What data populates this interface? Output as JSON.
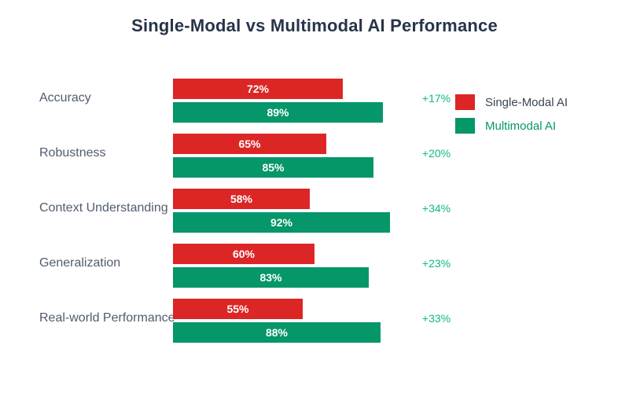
{
  "title": "Single-Modal vs Multimodal AI Performance",
  "colors": {
    "background": "#ffffff",
    "single_modal_bar": "#dc2626",
    "multimodal_bar": "#059669",
    "improvement_text": "#10b981",
    "title_text": "#283449",
    "category_text": "#515c6e",
    "legend_single_text": "#3a4554",
    "legend_multi_text": "#059669",
    "bar_value_text": "#ffffff"
  },
  "legend": {
    "items": [
      {
        "label": "Single-Modal AI",
        "color": "#dc2626"
      },
      {
        "label": "Multimodal AI",
        "color": "#059669"
      }
    ]
  },
  "chart_data": {
    "type": "bar",
    "orientation": "horizontal",
    "title": "Single-Modal vs Multimodal AI Performance",
    "categories": [
      "Accuracy",
      "Robustness",
      "Context Understanding",
      "Generalization",
      "Real-world Performance"
    ],
    "series": [
      {
        "name": "Single-Modal AI",
        "color": "#dc2626",
        "values": [
          72,
          65,
          58,
          60,
          55
        ],
        "labels": [
          "72%",
          "65%",
          "58%",
          "60%",
          "55%"
        ]
      },
      {
        "name": "Multimodal AI",
        "color": "#059669",
        "values": [
          89,
          85,
          92,
          83,
          88
        ],
        "labels": [
          "89%",
          "85%",
          "92%",
          "83%",
          "88%"
        ]
      }
    ],
    "improvements": [
      "+17%",
      "+20%",
      "+34%",
      "+23%",
      "+33%"
    ],
    "unit": "%",
    "xlim": [
      0,
      100
    ],
    "grid": false,
    "legend_position": "right"
  }
}
